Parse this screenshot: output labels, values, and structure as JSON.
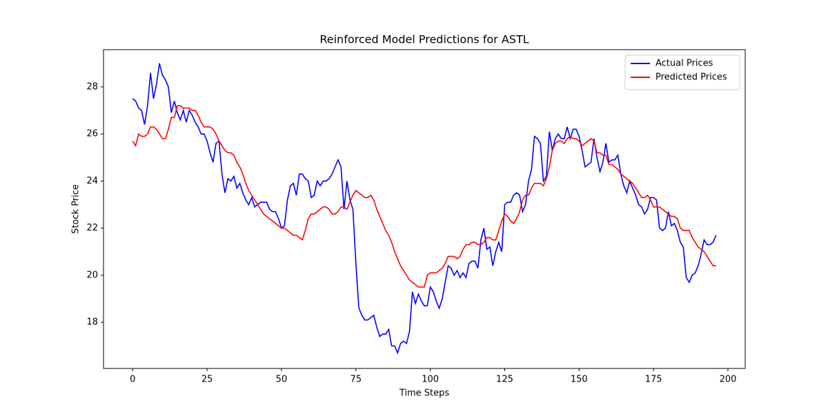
{
  "chart_data": {
    "type": "line",
    "title": "Reinforced Model Predictions for ASTL",
    "x_label": "Time Steps",
    "y_label": "Stock Price",
    "x": [
      0,
      1,
      2,
      3,
      4,
      5,
      6,
      7,
      8,
      9,
      10,
      11,
      12,
      13,
      14,
      15,
      16,
      17,
      18,
      19,
      20,
      21,
      22,
      23,
      24,
      25,
      26,
      27,
      28,
      29,
      30,
      31,
      32,
      33,
      34,
      35,
      36,
      37,
      38,
      39,
      40,
      41,
      42,
      43,
      44,
      45,
      46,
      47,
      48,
      49,
      50,
      51,
      52,
      53,
      54,
      55,
      56,
      57,
      58,
      59,
      60,
      61,
      62,
      63,
      64,
      65,
      66,
      67,
      68,
      69,
      70,
      71,
      72,
      73,
      74,
      75,
      76,
      77,
      78,
      79,
      80,
      81,
      82,
      83,
      84,
      85,
      86,
      87,
      88,
      89,
      90,
      91,
      92,
      93,
      94,
      95,
      96,
      97,
      98,
      99,
      100,
      101,
      102,
      103,
      104,
      105,
      106,
      107,
      108,
      109,
      110,
      111,
      112,
      113,
      114,
      115,
      116,
      117,
      118,
      119,
      120,
      121,
      122,
      123,
      124,
      125,
      126,
      127,
      128,
      129,
      130,
      131,
      132,
      133,
      134,
      135,
      136,
      137,
      138,
      139,
      140,
      141,
      142,
      143,
      144,
      145,
      146,
      147,
      148,
      149,
      150,
      151,
      152,
      153,
      154,
      155,
      156,
      157,
      158,
      159,
      160,
      161,
      162,
      163,
      164,
      165,
      166,
      167,
      168,
      169,
      170,
      171,
      172,
      173,
      174,
      175,
      176,
      177,
      178,
      179,
      180,
      181,
      182,
      183,
      184,
      185,
      186,
      187,
      188,
      189,
      190,
      191,
      192,
      193,
      194,
      195,
      196
    ],
    "series": [
      {
        "name": "Actual Prices",
        "color": "#0000ff",
        "values": [
          27.5,
          27.4,
          27.1,
          27.0,
          26.4,
          27.2,
          28.6,
          27.5,
          28.1,
          29.0,
          28.5,
          28.3,
          28.0,
          26.9,
          27.4,
          26.9,
          26.6,
          27.0,
          26.5,
          27.0,
          26.8,
          26.5,
          26.3,
          26.0,
          26.0,
          25.7,
          25.2,
          24.8,
          25.6,
          25.7,
          24.3,
          23.5,
          24.1,
          24.0,
          24.2,
          23.7,
          23.9,
          23.5,
          23.2,
          23.0,
          23.3,
          22.9,
          23.0,
          23.1,
          23.1,
          23.1,
          22.8,
          22.7,
          22.7,
          22.4,
          22.0,
          22.1,
          23.2,
          23.8,
          23.9,
          23.4,
          24.3,
          24.3,
          24.1,
          24.0,
          23.3,
          23.4,
          24.0,
          23.8,
          24.0,
          24.0,
          24.1,
          24.3,
          24.6,
          24.9,
          24.6,
          22.8,
          24.0,
          23.2,
          22.8,
          20.5,
          18.6,
          18.3,
          18.1,
          18.1,
          18.2,
          18.3,
          17.8,
          17.4,
          17.5,
          17.5,
          17.7,
          17.0,
          17.0,
          16.7,
          17.1,
          17.2,
          17.1,
          17.6,
          19.3,
          18.8,
          19.2,
          18.9,
          18.7,
          18.7,
          19.5,
          19.3,
          18.9,
          18.6,
          19.0,
          19.7,
          20.4,
          20.3,
          20.0,
          20.2,
          19.9,
          20.1,
          19.9,
          20.5,
          20.6,
          20.6,
          20.3,
          21.5,
          22.0,
          21.1,
          21.2,
          20.4,
          21.0,
          21.4,
          21.0,
          23.0,
          23.1,
          23.1,
          23.4,
          23.5,
          23.4,
          22.7,
          23.0,
          24.0,
          24.5,
          25.9,
          25.8,
          25.6,
          24.0,
          24.2,
          26.1,
          25.3,
          25.8,
          26.0,
          25.8,
          25.8,
          26.3,
          25.8,
          26.2,
          26.2,
          25.9,
          25.3,
          24.6,
          24.7,
          24.8,
          25.8,
          25.0,
          24.4,
          24.8,
          25.6,
          24.8,
          24.9,
          24.9,
          25.1,
          24.3,
          23.8,
          23.5,
          24.0,
          23.7,
          23.4,
          23.0,
          22.9,
          22.6,
          22.8,
          23.3,
          23.3,
          23.2,
          22.0,
          21.9,
          22.0,
          22.7,
          22.1,
          22.2,
          21.9,
          21.4,
          21.2,
          19.9,
          19.7,
          20.0,
          20.1,
          20.4,
          20.9,
          21.5,
          21.3,
          21.3,
          21.4,
          21.7
        ]
      },
      {
        "name": "Predicted Prices",
        "color": "#ff0000",
        "values": [
          25.7,
          25.5,
          26.0,
          25.9,
          25.9,
          26.0,
          26.3,
          26.3,
          26.2,
          26.0,
          25.8,
          25.8,
          26.2,
          26.7,
          26.7,
          27.2,
          27.2,
          27.1,
          27.1,
          27.1,
          27.0,
          27.0,
          26.8,
          26.5,
          26.3,
          26.3,
          26.3,
          26.2,
          26.0,
          25.7,
          25.5,
          25.3,
          25.2,
          25.2,
          25.1,
          24.8,
          24.6,
          24.3,
          23.9,
          23.6,
          23.4,
          23.2,
          23.0,
          22.8,
          22.6,
          22.5,
          22.4,
          22.3,
          22.2,
          22.1,
          22.0,
          22.0,
          21.9,
          21.8,
          21.7,
          21.7,
          21.6,
          21.5,
          21.9,
          22.4,
          22.6,
          22.6,
          22.7,
          22.8,
          22.9,
          22.9,
          22.8,
          22.6,
          22.6,
          22.7,
          22.9,
          22.9,
          22.8,
          23.1,
          23.4,
          23.6,
          23.5,
          23.4,
          23.3,
          23.3,
          23.4,
          23.2,
          22.8,
          22.5,
          22.2,
          21.9,
          21.7,
          21.4,
          21.0,
          20.7,
          20.4,
          20.2,
          20.0,
          19.8,
          19.7,
          19.6,
          19.5,
          19.5,
          19.5,
          20.0,
          20.1,
          20.1,
          20.1,
          20.2,
          20.3,
          20.5,
          20.8,
          20.8,
          20.8,
          20.7,
          20.8,
          21.1,
          21.3,
          21.3,
          21.4,
          21.4,
          21.3,
          21.3,
          21.4,
          21.6,
          21.6,
          21.5,
          21.5,
          21.9,
          22.3,
          22.6,
          22.5,
          22.3,
          22.2,
          22.4,
          22.7,
          23.2,
          23.4,
          23.4,
          23.7,
          23.9,
          23.9,
          23.9,
          23.8,
          24.1,
          24.6,
          25.3,
          25.6,
          25.7,
          25.7,
          25.6,
          25.8,
          25.9,
          25.8,
          25.8,
          25.7,
          25.5,
          25.6,
          25.7,
          25.8,
          25.7,
          25.2,
          25.2,
          25.1,
          25.1,
          24.7,
          24.7,
          24.6,
          24.5,
          24.3,
          24.2,
          24.1,
          24.0,
          23.9,
          23.7,
          23.5,
          23.3,
          23.3,
          23.4,
          23.2,
          22.9,
          22.9,
          22.9,
          22.8,
          22.7,
          22.6,
          22.5,
          22.5,
          22.4,
          22.0,
          21.9,
          21.9,
          21.9,
          21.6,
          21.4,
          21.2,
          21.1,
          21.0,
          20.8,
          20.6,
          20.4,
          20.4
        ]
      }
    ],
    "xlim": [
      -9.8,
      205.8
    ],
    "xticks": [
      0,
      25,
      50,
      75,
      100,
      125,
      150,
      175,
      200
    ],
    "ylim": [
      16.04,
      29.58
    ],
    "yticks": [
      18,
      20,
      22,
      24,
      26,
      28
    ],
    "legend": "upper right"
  }
}
